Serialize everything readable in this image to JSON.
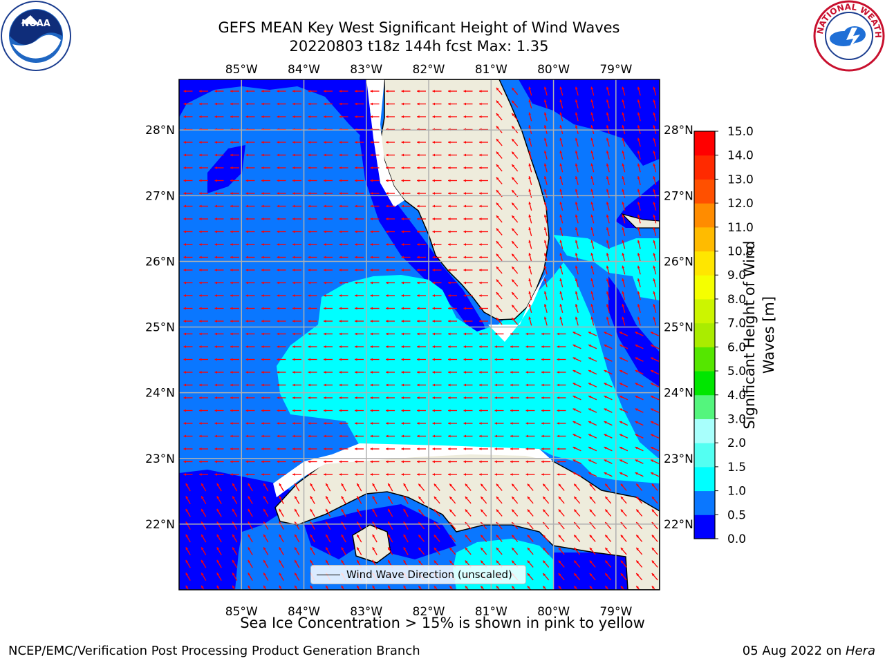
{
  "header": {
    "title_line1": "GEFS MEAN Key West Significant Height of Wind Waves",
    "title_line2": "20220803 t18z 144h fcst   Max: 1.35"
  },
  "logos": {
    "left": {
      "icon": "noaa-logo",
      "text": "NOAA"
    },
    "right": {
      "icon": "nws-logo",
      "text": "NATIONAL WEATHER SERVICE"
    }
  },
  "map": {
    "lon_ticks": [
      "85°W",
      "84°W",
      "83°W",
      "82°W",
      "81°W",
      "80°W",
      "79°W"
    ],
    "lat_ticks": [
      "28°N",
      "27°N",
      "26°N",
      "25°N",
      "24°N",
      "23°N",
      "22°N"
    ],
    "extent": {
      "lon_min": -86.0,
      "lon_max": -78.3,
      "lat_min": 21.0,
      "lat_max": 28.77
    },
    "arrow_color": "#ff0000",
    "land_color": "#eeecdc",
    "legend_label": "Wind Wave Direction (unscaled)"
  },
  "colorbar": {
    "label": "Significant Height of Wind Waves [m]",
    "ticks": [
      "0.0",
      "0.5",
      "1.0",
      "1.5",
      "2.0",
      "3.0",
      "4.0",
      "5.0",
      "6.0",
      "7.0",
      "8.0",
      "9.0",
      "10.0",
      "11.0",
      "12.0",
      "13.0",
      "14.0",
      "15.0"
    ],
    "colors": [
      "#0000ff",
      "#0a77ff",
      "#00ffff",
      "#53fff2",
      "#a8fffc",
      "#54f57d",
      "#00e600",
      "#55e600",
      "#aaec00",
      "#ccf500",
      "#f5ff00",
      "#ffe600",
      "#ffbb00",
      "#ff8c00",
      "#ff5000",
      "#ff2a00",
      "#ff0000"
    ]
  },
  "caption": "Sea Ice Concentration > 15% is shown in pink to yellow",
  "footer": {
    "left": "NCEP/EMC/Verification Post Processing Product Generation Branch",
    "right_date": "05 Aug 2022 on ",
    "right_host": "Hera"
  }
}
